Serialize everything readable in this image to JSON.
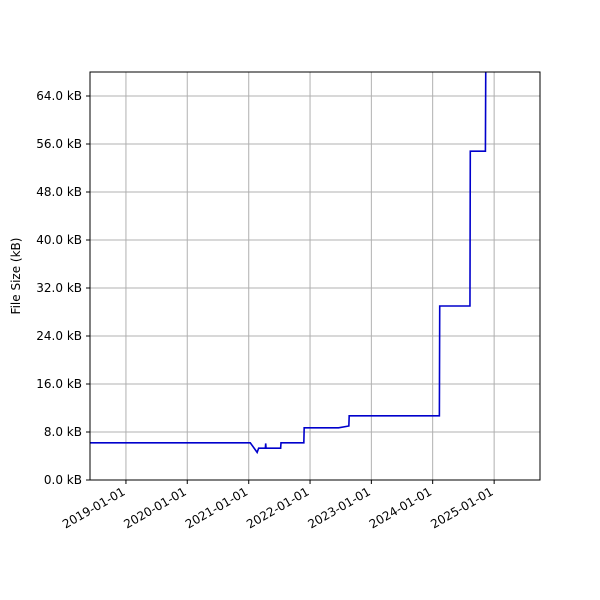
{
  "chart_data": {
    "type": "line",
    "title": "",
    "xlabel": "",
    "ylabel": "File Size (kB)",
    "x_type": "date",
    "xlim": [
      "2018-06-01",
      "2025-10-01"
    ],
    "ylim": [
      0,
      68
    ],
    "x_ticks": [
      "2019-01-01",
      "2020-01-01",
      "2021-01-01",
      "2022-01-01",
      "2023-01-01",
      "2024-01-01",
      "2025-01-01"
    ],
    "y_ticks": [
      0,
      8,
      16,
      24,
      32,
      40,
      48,
      56,
      64
    ],
    "y_tick_labels": [
      "0.0 kB",
      "8.0 kB",
      "16.0 kB",
      "24.0 kB",
      "32.0 kB",
      "40.0 kB",
      "48.0 kB",
      "56.0 kB",
      "64.0 kB"
    ],
    "grid": true,
    "line_color": "#0000cc",
    "series": [
      {
        "points": [
          [
            "2018-06-01",
            6.2
          ],
          [
            "2021-01-10",
            6.2
          ],
          [
            "2021-02-20",
            4.6
          ],
          [
            "2021-03-01",
            5.3
          ],
          [
            "2021-04-10",
            5.3
          ],
          [
            "2021-04-12",
            6.1
          ],
          [
            "2021-04-14",
            5.3
          ],
          [
            "2021-07-10",
            5.3
          ],
          [
            "2021-07-12",
            6.2
          ],
          [
            "2021-11-25",
            6.2
          ],
          [
            "2021-11-27",
            8.7
          ],
          [
            "2022-06-20",
            8.7
          ],
          [
            "2022-08-20",
            9.0
          ],
          [
            "2022-08-22",
            10.7
          ],
          [
            "2024-02-10",
            10.7
          ],
          [
            "2024-02-12",
            29.0
          ],
          [
            "2024-08-10",
            29.0
          ],
          [
            "2024-08-12",
            54.8
          ],
          [
            "2024-11-10",
            54.8
          ],
          [
            "2024-11-12",
            68.0
          ]
        ]
      }
    ]
  }
}
